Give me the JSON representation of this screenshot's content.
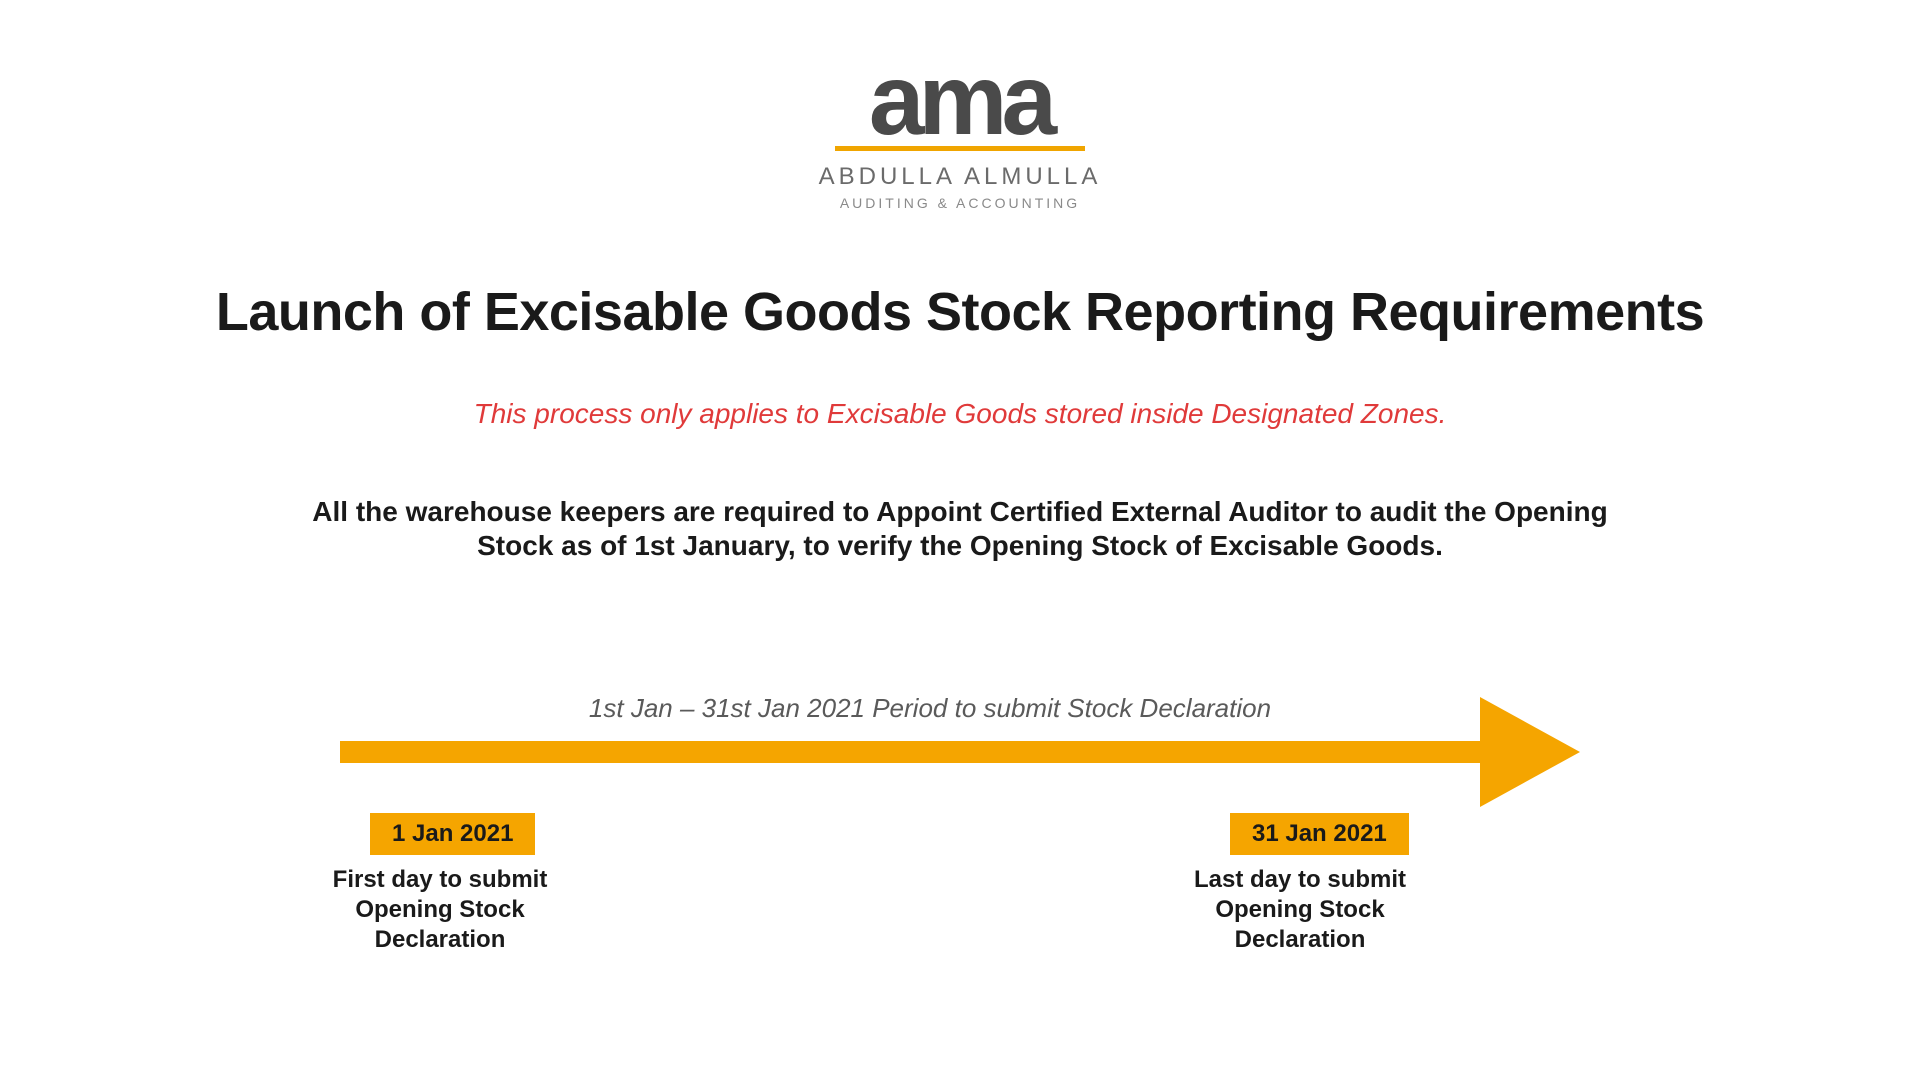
{
  "logo": {
    "word": "ama",
    "underline_color": "#f0a500",
    "name": "ABDULLA ALMULLA",
    "sub": "AUDITING & ACCOUNTING",
    "word_color": "#4a4a4a",
    "name_color": "#6b6b6b",
    "sub_color": "#8a8a8a"
  },
  "title": "Launch of Excisable Goods Stock Reporting Requirements",
  "subtitle": "This process only applies to Excisable Goods stored inside Designated Zones.",
  "subtitle_color": "#e03a3a",
  "body": "All the warehouse keepers are required to Appoint Certified External Auditor to audit the Opening Stock as of 1st January, to verify the Opening Stock of Excisable Goods.",
  "timeline": {
    "period_label": "1st Jan – 31st Jan 2021 Period to submit Stock Declaration",
    "arrow_color": "#f5a500",
    "start": {
      "date": "1 Jan 2021",
      "text": "First day to submit Opening Stock Declaration"
    },
    "end": {
      "date": "31 Jan 2021",
      "text": "Last day to submit Opening Stock Declaration"
    }
  },
  "background_color": "#ffffff",
  "title_fontsize": 54,
  "subtitle_fontsize": 28,
  "body_fontsize": 28,
  "badge_fontsize": 24,
  "event_fontsize": 24
}
